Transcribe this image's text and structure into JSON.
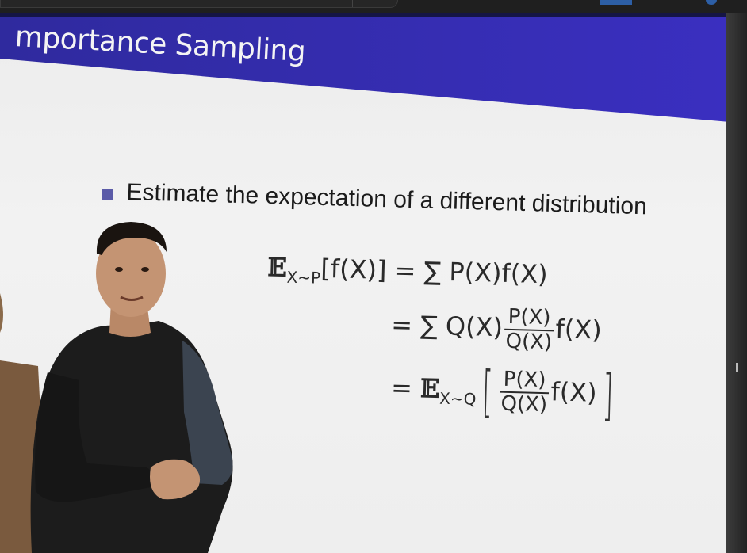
{
  "slide": {
    "title": "mportance Sampling",
    "bullet": "Estimate the expectation of a different distribution",
    "eq1": {
      "lhs_E": "𝔼",
      "lhs_sub": "X∼P",
      "lhs_rest": "[f(X)] = ∑ P(X)f(X)"
    },
    "eq2": {
      "pre": "= ∑ Q(X)",
      "num": "P(X)",
      "den": "Q(X)",
      "post": "f(X)"
    },
    "eq3": {
      "pre": "= ",
      "E": "𝔼",
      "sub": "X∼Q",
      "lbr": "[",
      "num": "P(X)",
      "den": "Q(X)",
      "post": "f(X)",
      "rbr": "]"
    }
  },
  "colors": {
    "header_band": "#3d33b0",
    "bullet": "#5b5ba8",
    "screen": "#eeeeee"
  }
}
